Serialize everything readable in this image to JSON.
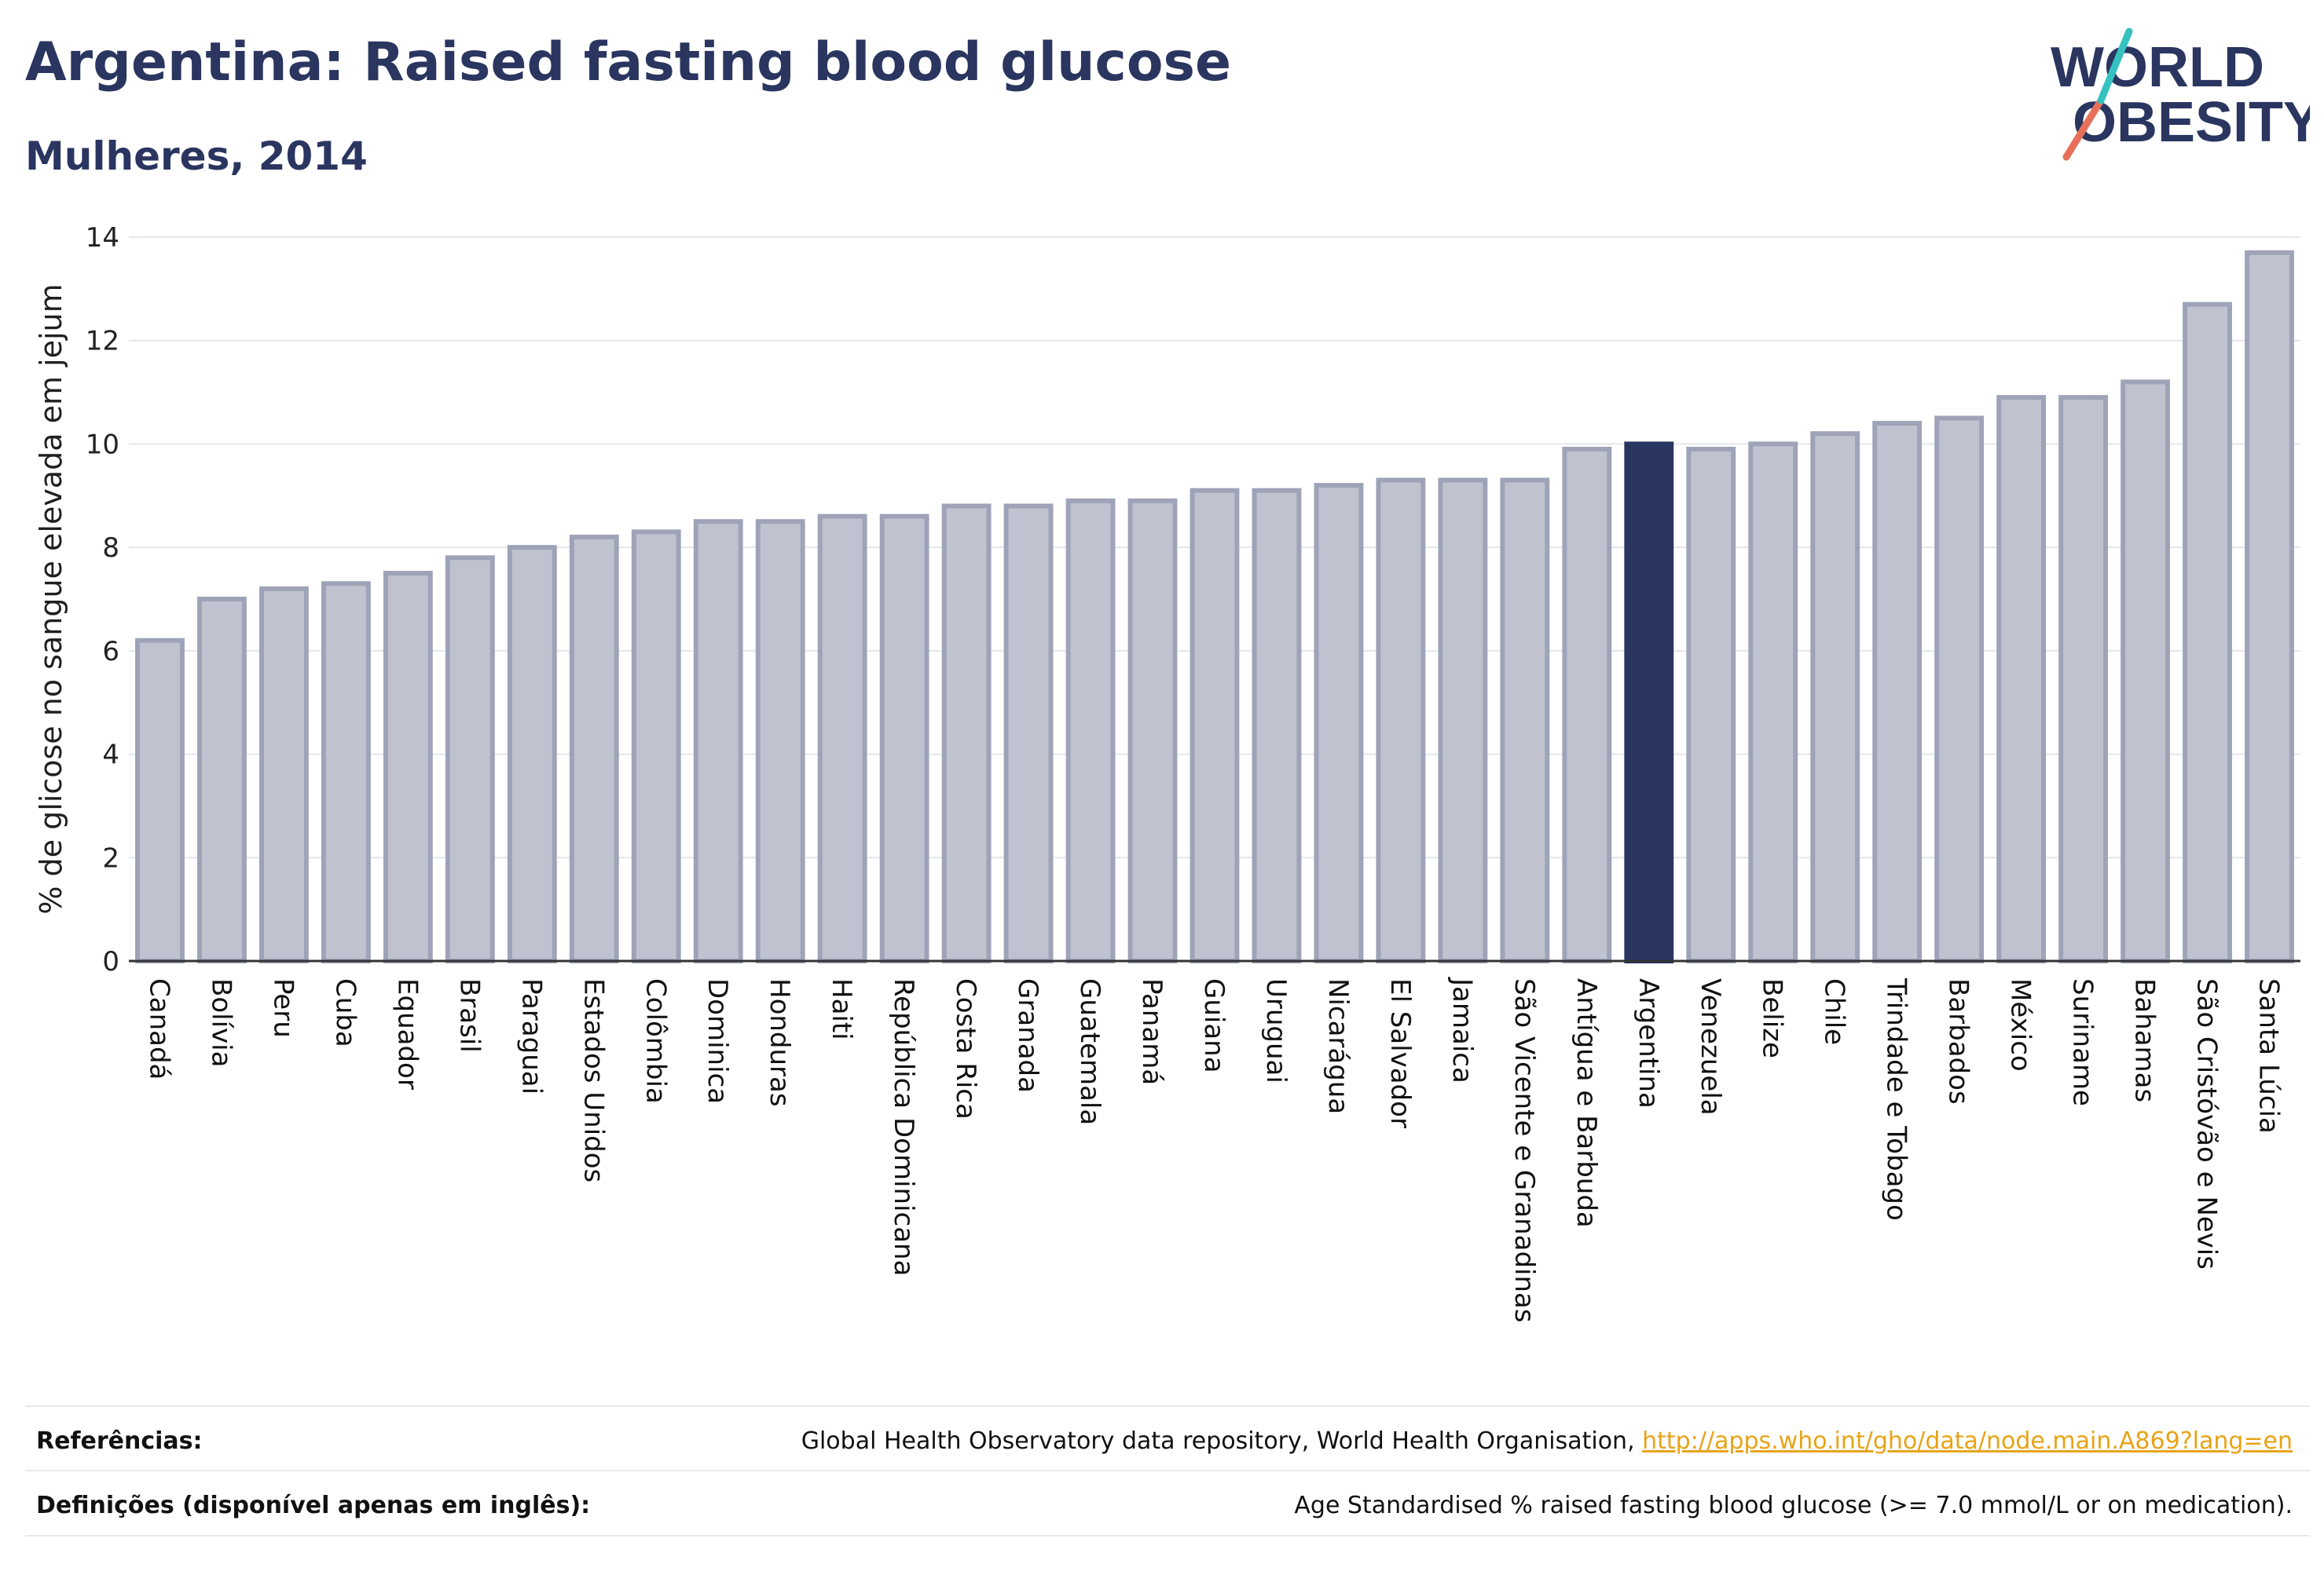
{
  "header": {
    "title": "Argentina: Raised fasting blood glucose",
    "subtitle": "Mulheres, 2014"
  },
  "logo": {
    "line1": "WORLD",
    "line2": "OBESITY"
  },
  "colors": {
    "highlight": "#2a3560",
    "bar_fill": "#c0c3cf",
    "bar_stroke": "#9ea3b8",
    "grid": "#e4e6ec"
  },
  "chart_data": {
    "type": "bar",
    "ylabel": "% de glicose no sangue elevada em jejum",
    "ylim": [
      0,
      14
    ],
    "yticks": [
      0,
      2,
      4,
      6,
      8,
      10,
      12,
      14
    ],
    "grid": true,
    "highlight": "Argentina",
    "categories": [
      "Canadá",
      "Bolívia",
      "Peru",
      "Cuba",
      "Equador",
      "Brasil",
      "Paraguai",
      "Estados Unidos",
      "Colômbia",
      "Dominica",
      "Honduras",
      "Haiti",
      "República Dominicana",
      "Costa Rica",
      "Granada",
      "Guatemala",
      "Panamá",
      "Guiana",
      "Uruguai",
      "Nicarágua",
      "El Salvador",
      "Jamaica",
      "São Vicente e Granadinas",
      "Antígua e Barbuda",
      "Argentina",
      "Venezuela",
      "Belize",
      "Chile",
      "Trindade e Tobago",
      "Barbados",
      "México",
      "Suriname",
      "Bahamas",
      "São Cristóvão e Nevis",
      "Santa Lúcia"
    ],
    "values": [
      6.2,
      7.0,
      7.2,
      7.3,
      7.5,
      7.8,
      8.0,
      8.2,
      8.3,
      8.5,
      8.5,
      8.6,
      8.6,
      8.8,
      8.8,
      8.9,
      8.9,
      9.1,
      9.1,
      9.2,
      9.3,
      9.3,
      9.3,
      9.9,
      10.0,
      9.9,
      10.0,
      10.2,
      10.4,
      10.5,
      10.9,
      10.9,
      11.2,
      12.7,
      13.7
    ]
  },
  "footer": {
    "references_label": "Referências:",
    "references_text": "Global Health Observatory data repository, World Health Organisation, ",
    "references_link": "http://apps.who.int/gho/data/node.main.A869?lang=en",
    "definitions_label": "Definições (disponível apenas em inglês):",
    "definitions_text": "Age Standardised % raised fasting blood glucose (>= 7.0 mmol/L or on medication)."
  }
}
